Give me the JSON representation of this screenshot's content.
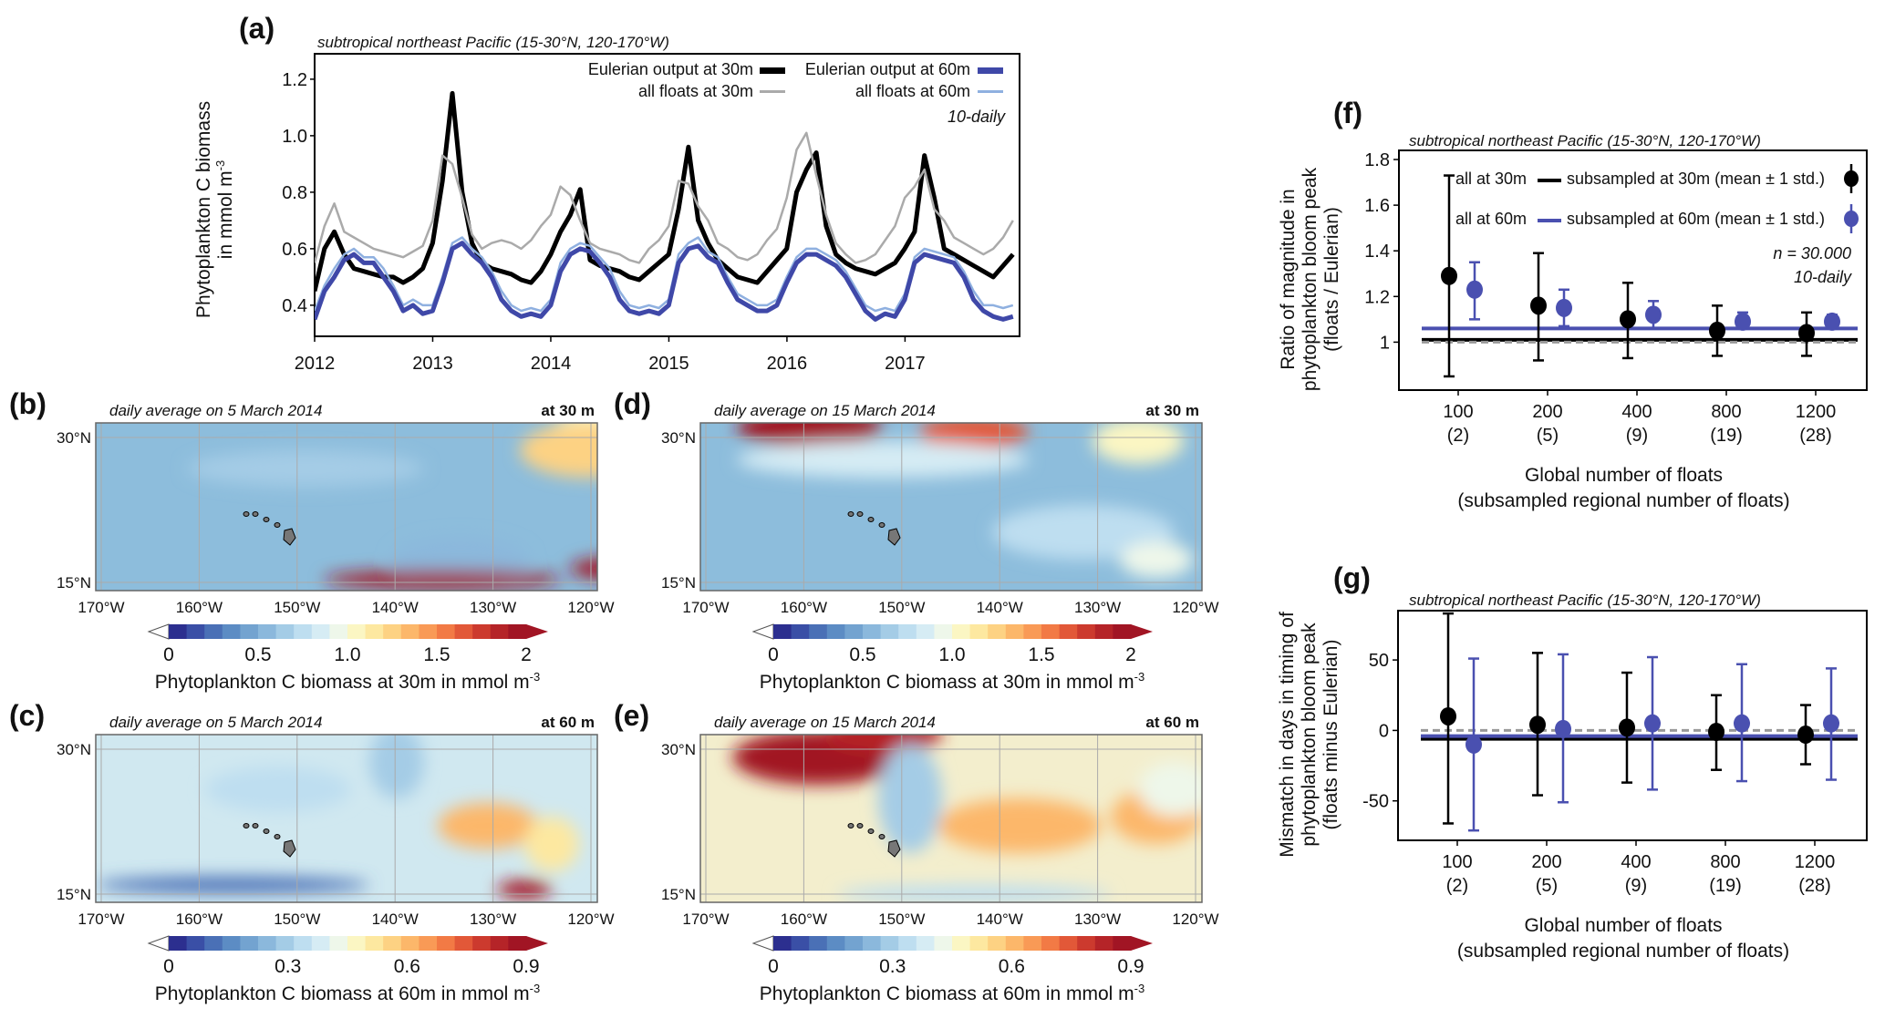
{
  "panel_labels": {
    "a": "(a)",
    "b": "(b)",
    "c": "(c)",
    "d": "(d)",
    "e": "(e)",
    "f": "(f)",
    "g": "(g)"
  },
  "region_title": "subtropical northeast Pacific (15-30°N, 120-170°W)",
  "colors": {
    "eulerian_30m": "#000000",
    "floats_30m": "#aaaaaa",
    "eulerian_60m": "#3f48a8",
    "floats_60m": "#8fb0e0",
    "subsampled_60m": "#4a50b0",
    "reference_dashed": "#999999"
  },
  "chart_data": [
    {
      "id": "a",
      "type": "line",
      "title": "subtropical northeast Pacific (15-30°N, 120-170°W)",
      "ylabel": "Phytoplankton C biomass",
      "ylabel2": "in mmol m",
      "ylabel_exp": "-3",
      "ylim": [
        0.29,
        1.29
      ],
      "yticks": [
        "0.4",
        "0.6",
        "0.8",
        "1.0",
        "1.2"
      ],
      "xlim": [
        2012.0,
        2017.97
      ],
      "xticks": [
        "2012",
        "2013",
        "2014",
        "2015",
        "2016",
        "2017"
      ],
      "annotation": "10-daily",
      "x_start": 2012.0,
      "x_step_years": 0.0833,
      "series": [
        {
          "name": "Eulerian output at 30m",
          "color": "#000000",
          "width": 5,
          "values": [
            0.45,
            0.6,
            0.66,
            0.58,
            0.53,
            0.52,
            0.51,
            0.5,
            0.5,
            0.48,
            0.5,
            0.53,
            0.62,
            0.84,
            1.15,
            0.8,
            0.62,
            0.55,
            0.53,
            0.52,
            0.51,
            0.49,
            0.48,
            0.52,
            0.58,
            0.66,
            0.72,
            0.81,
            0.56,
            0.54,
            0.53,
            0.52,
            0.5,
            0.49,
            0.52,
            0.55,
            0.58,
            0.74,
            0.96,
            0.7,
            0.62,
            0.56,
            0.53,
            0.5,
            0.49,
            0.48,
            0.52,
            0.56,
            0.6,
            0.8,
            0.88,
            0.94,
            0.68,
            0.58,
            0.55,
            0.53,
            0.52,
            0.51,
            0.53,
            0.55,
            0.6,
            0.66,
            0.93,
            0.78,
            0.6,
            0.58,
            0.56,
            0.54,
            0.52,
            0.5,
            0.54,
            0.58
          ]
        },
        {
          "name": "all floats at 30m",
          "color": "#aaaaaa",
          "width": 2.5,
          "values": [
            0.55,
            0.68,
            0.76,
            0.66,
            0.64,
            0.62,
            0.6,
            0.59,
            0.58,
            0.57,
            0.59,
            0.61,
            0.7,
            0.93,
            0.9,
            0.78,
            0.65,
            0.6,
            0.62,
            0.63,
            0.62,
            0.6,
            0.63,
            0.68,
            0.72,
            0.82,
            0.79,
            0.7,
            0.62,
            0.6,
            0.59,
            0.58,
            0.56,
            0.55,
            0.6,
            0.63,
            0.68,
            0.84,
            0.83,
            0.75,
            0.7,
            0.62,
            0.6,
            0.57,
            0.56,
            0.58,
            0.63,
            0.67,
            0.78,
            0.95,
            1.01,
            0.86,
            0.72,
            0.62,
            0.58,
            0.55,
            0.56,
            0.58,
            0.63,
            0.68,
            0.78,
            0.82,
            0.88,
            0.74,
            0.7,
            0.64,
            0.62,
            0.6,
            0.58,
            0.6,
            0.64,
            0.7
          ]
        },
        {
          "name": "all floats at 60m",
          "color": "#8fb0e0",
          "width": 2.5,
          "values": [
            0.38,
            0.47,
            0.53,
            0.58,
            0.6,
            0.57,
            0.57,
            0.53,
            0.47,
            0.4,
            0.42,
            0.4,
            0.4,
            0.5,
            0.62,
            0.64,
            0.6,
            0.57,
            0.52,
            0.45,
            0.4,
            0.38,
            0.39,
            0.38,
            0.42,
            0.55,
            0.6,
            0.62,
            0.61,
            0.57,
            0.53,
            0.45,
            0.4,
            0.39,
            0.4,
            0.39,
            0.42,
            0.58,
            0.62,
            0.64,
            0.59,
            0.57,
            0.5,
            0.44,
            0.42,
            0.4,
            0.4,
            0.42,
            0.5,
            0.57,
            0.6,
            0.6,
            0.58,
            0.56,
            0.52,
            0.46,
            0.4,
            0.38,
            0.39,
            0.38,
            0.44,
            0.57,
            0.6,
            0.59,
            0.58,
            0.57,
            0.52,
            0.45,
            0.4,
            0.4,
            0.39,
            0.4
          ]
        },
        {
          "name": "Eulerian output at 60m",
          "color": "#3f48a8",
          "width": 5,
          "values": [
            0.35,
            0.45,
            0.5,
            0.56,
            0.58,
            0.55,
            0.55,
            0.5,
            0.45,
            0.38,
            0.4,
            0.37,
            0.38,
            0.48,
            0.6,
            0.62,
            0.58,
            0.55,
            0.5,
            0.42,
            0.38,
            0.36,
            0.37,
            0.36,
            0.4,
            0.52,
            0.58,
            0.6,
            0.59,
            0.55,
            0.5,
            0.42,
            0.38,
            0.37,
            0.38,
            0.37,
            0.4,
            0.55,
            0.6,
            0.61,
            0.57,
            0.55,
            0.48,
            0.42,
            0.4,
            0.38,
            0.38,
            0.4,
            0.48,
            0.55,
            0.58,
            0.58,
            0.56,
            0.54,
            0.5,
            0.44,
            0.38,
            0.35,
            0.37,
            0.36,
            0.42,
            0.55,
            0.58,
            0.57,
            0.56,
            0.55,
            0.5,
            0.42,
            0.38,
            0.36,
            0.35,
            0.36
          ]
        }
      ],
      "legend": "top-right"
    },
    {
      "id": "f",
      "type": "scatter",
      "title": "subtropical northeast Pacific (15-30°N, 120-170°W)",
      "ylabel_lines": [
        "Ratio of magnitude in",
        "phytoplankton bloom peak",
        "(floats / Eulerian)"
      ],
      "xlabel_lines": [
        "Global number of floats",
        "(subsampled regional number of floats)"
      ],
      "ylim": [
        0.79,
        1.84
      ],
      "yticks": [
        "1",
        "1.2",
        "1.4",
        "1.6",
        "1.8"
      ],
      "ytick_values": [
        1,
        1.2,
        1.4,
        1.6,
        1.8
      ],
      "categories": [
        "100",
        "200",
        "400",
        "800",
        "1200"
      ],
      "categories_sub": [
        "(2)",
        "(5)",
        "(9)",
        "(19)",
        "(28)"
      ],
      "series": [
        {
          "name": "subsampled at 30m (mean ± 1 std.)",
          "color": "#000000",
          "mean": [
            1.29,
            1.16,
            1.1,
            1.05,
            1.04
          ],
          "low": [
            0.85,
            0.92,
            0.93,
            0.94,
            0.94
          ],
          "high": [
            1.73,
            1.39,
            1.26,
            1.16,
            1.13
          ]
        },
        {
          "name": "subsampled at 60m (mean ± 1 std.)",
          "color": "#4a50b0",
          "mean": [
            1.23,
            1.15,
            1.12,
            1.09,
            1.09
          ],
          "low": [
            1.1,
            1.07,
            1.06,
            1.06,
            1.06
          ],
          "high": [
            1.35,
            1.23,
            1.18,
            1.13,
            1.12
          ]
        }
      ],
      "reference_lines": [
        {
          "name": "all at 30m",
          "value": 1.01,
          "color": "#000000"
        },
        {
          "name": "all at 60m",
          "value": 1.06,
          "color": "#4a50b0"
        },
        {
          "value": 1.0,
          "color": "#999999",
          "dashed": true
        }
      ],
      "annotations": [
        "n = 30.000",
        "10-daily"
      ],
      "legend": "top-right"
    },
    {
      "id": "g",
      "type": "scatter",
      "title": "subtropical northeast Pacific (15-30°N, 120-170°W)",
      "ylabel_lines": [
        "Mismatch in days in timing of",
        "phytoplankton bloom peak",
        "(floats minus Eulerian)"
      ],
      "xlabel_lines": [
        "Global number of floats",
        "(subsampled regional number of floats)"
      ],
      "ylim": [
        -78,
        85
      ],
      "yticks": [
        "-50",
        "0",
        "50"
      ],
      "ytick_values": [
        -50,
        0,
        50
      ],
      "categories": [
        "100",
        "200",
        "400",
        "800",
        "1200"
      ],
      "categories_sub": [
        "(2)",
        "(5)",
        "(9)",
        "(19)",
        "(28)"
      ],
      "series": [
        {
          "color": "#000000",
          "mean": [
            10,
            4,
            2,
            -1,
            -3
          ],
          "low": [
            -66,
            -46,
            -37,
            -28,
            -24
          ],
          "high": [
            83,
            55,
            41,
            25,
            18
          ]
        },
        {
          "color": "#4a50b0",
          "mean": [
            -10,
            1,
            5,
            5,
            5
          ],
          "low": [
            -71,
            -51,
            -42,
            -36,
            -35
          ],
          "high": [
            51,
            54,
            52,
            47,
            44
          ]
        }
      ],
      "reference_lines": [
        {
          "value": -6,
          "color": "#000000"
        },
        {
          "value": -4,
          "color": "#4a50b0"
        },
        {
          "value": 0,
          "color": "#999999",
          "dashed": true
        }
      ]
    }
  ],
  "maps": {
    "b": {
      "subtitle": "daily average on 5 March 2014",
      "depth": "at 30 m"
    },
    "c": {
      "subtitle": "daily average on 5 March 2014",
      "depth": "at 60 m"
    },
    "d": {
      "subtitle": "daily average on 15 March 2014",
      "depth": "at 30 m"
    },
    "e": {
      "subtitle": "daily average on 15 March 2014",
      "depth": "at 60 m"
    },
    "lat_labels": [
      "30°N",
      "15°N"
    ],
    "lon_labels": [
      "170°W",
      "160°W",
      "150°W",
      "140°W",
      "130°W",
      "120°W"
    ]
  },
  "colorbars": {
    "30m": {
      "ticks": [
        "0",
        "0.5",
        "1.0",
        "1.5",
        "2"
      ],
      "label": "Phytoplankton C biomass at 30m in mmol m",
      "exp": "-3"
    },
    "60m": {
      "ticks": [
        "0",
        "0.3",
        "0.6",
        "0.9"
      ],
      "label": "Phytoplankton C biomass at 60m in mmol m",
      "exp": "-3"
    },
    "palette": [
      "#2c2f8f",
      "#3a4fa6",
      "#4a70b6",
      "#5c8cc4",
      "#73a3d0",
      "#8bb8dc",
      "#a4cce6",
      "#bedef0",
      "#d6ecf4",
      "#eef7ea",
      "#fbf6c3",
      "#fde8a0",
      "#fdd283",
      "#fcb76a",
      "#f99a56",
      "#f27a45",
      "#e25838",
      "#cc3a2e",
      "#b52428",
      "#a11524"
    ]
  }
}
